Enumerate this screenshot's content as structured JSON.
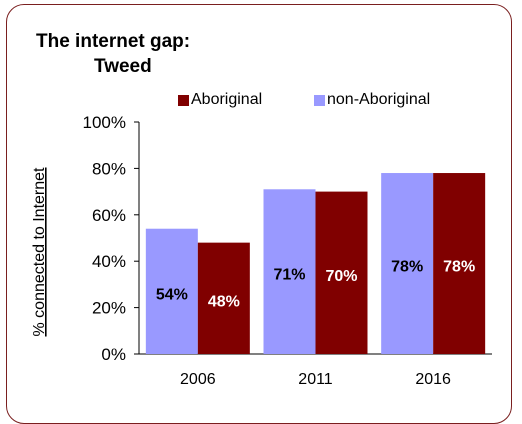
{
  "title_line1": "The internet gap:",
  "title_line2": "Tweed",
  "chart_data": {
    "type": "bar",
    "title": "The internet gap: Tweed",
    "categories": [
      "2006",
      "2011",
      "2016"
    ],
    "series": [
      {
        "name": "non-Aboriginal",
        "color": "#9999ff",
        "values": [
          54,
          71,
          78
        ],
        "labels": [
          "54%",
          "71%",
          "78%"
        ]
      },
      {
        "name": "Aboriginal",
        "color": "#800000",
        "values": [
          48,
          70,
          78
        ],
        "labels": [
          "48%",
          "70%",
          "78%"
        ]
      }
    ],
    "legend_order": [
      "Aboriginal",
      "non-Aboriginal"
    ],
    "legend_position": "top-right",
    "ylabel": "% connected to Internet",
    "xlabel": "",
    "ylim": [
      0,
      100
    ],
    "yticks": [
      0,
      20,
      40,
      60,
      80,
      100
    ],
    "ytick_labels": [
      "0%",
      "20%",
      "40%",
      "60%",
      "80%",
      "100%"
    ],
    "grid": false
  }
}
